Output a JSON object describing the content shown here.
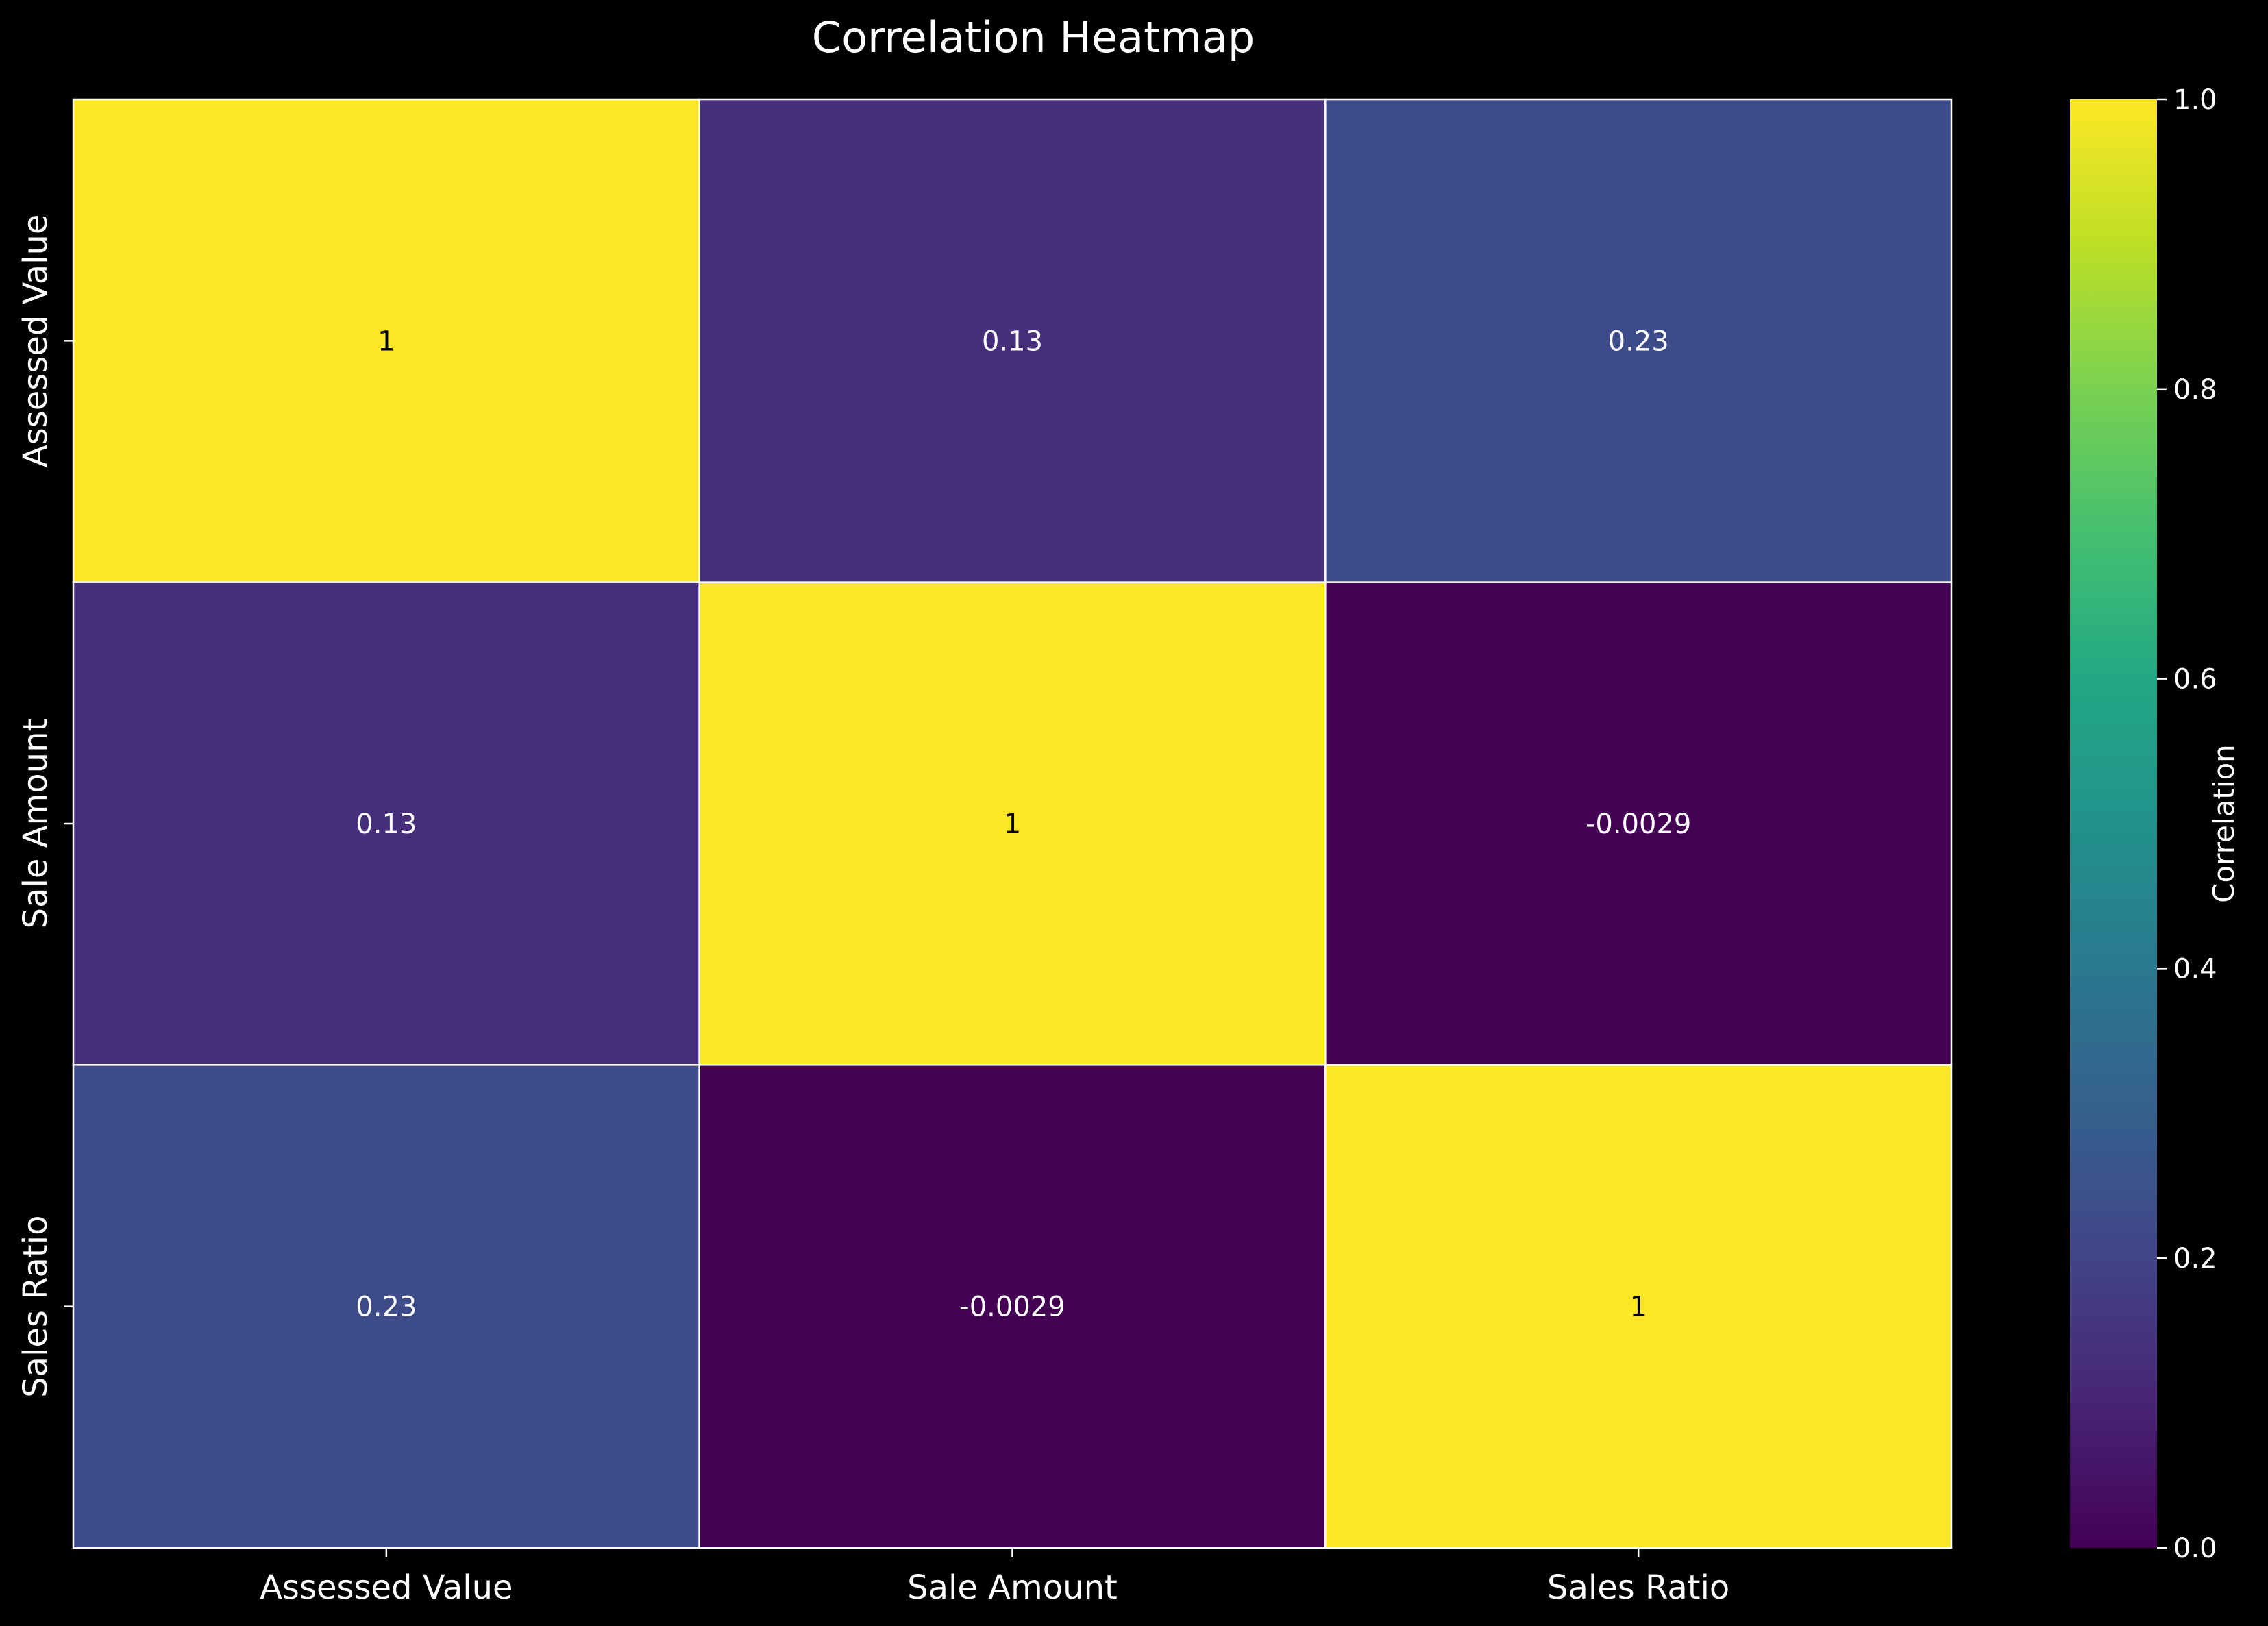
{
  "chart_data": {
    "type": "heatmap",
    "title": "Correlation Heatmap",
    "x_categories": [
      "Assessed Value",
      "Sale Amount",
      "Sales Ratio"
    ],
    "y_categories": [
      "Assessed Value",
      "Sale Amount",
      "Sales Ratio"
    ],
    "values": [
      [
        1,
        0.13,
        0.23
      ],
      [
        0.13,
        1,
        -0.0029
      ],
      [
        0.23,
        -0.0029,
        1
      ]
    ],
    "annotations": [
      [
        "1",
        "0.13",
        "0.23"
      ],
      [
        "0.13",
        "1",
        "-0.0029"
      ],
      [
        "0.23",
        "-0.0029",
        "1"
      ]
    ],
    "colormap": "viridis",
    "color_range": [
      0.0,
      1.0
    ],
    "colorbar": {
      "label": "Correlation",
      "ticks": [
        0.0,
        0.2,
        0.4,
        0.6,
        0.8,
        1.0
      ],
      "tick_labels": [
        "0.0",
        "0.2",
        "0.4",
        "0.6",
        "0.8",
        "1.0"
      ]
    },
    "colors": {
      "background": "#000000",
      "text": "#ffffff",
      "cell_border": "#ffffff",
      "annotation_on_light": "#000000",
      "annotation_on_dark": "#ffffff"
    }
  }
}
